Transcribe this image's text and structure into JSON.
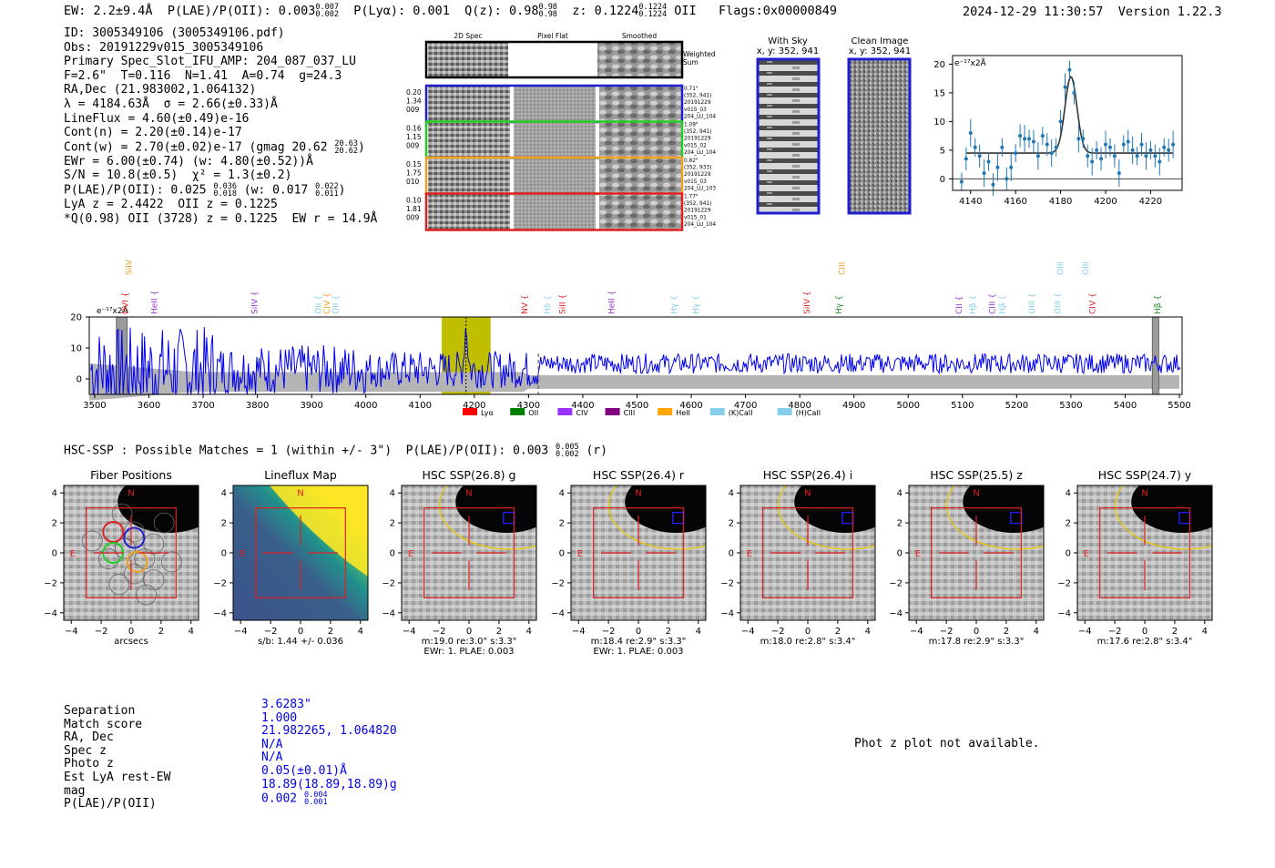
{
  "header": {
    "ew": "EW: 2.2±9.4Å",
    "plae_label": "P(LAE)/P(OII): 0.003",
    "plae_hi": "0.007",
    "plae_lo": "0.002",
    "plya": "P(Lyα): 0.001",
    "qz_label": "Q(z): 0.98",
    "qz_hi": "0.98",
    "qz_lo": "0.98",
    "z_label": "z: 0.1224",
    "z_hi": "0.1224",
    "z_lo": "0.1224",
    "z_line": "OII",
    "flags": "Flags:0x00000849",
    "timestamp": "2024-12-29 11:30:57",
    "version": "Version 1.22.3"
  },
  "info": {
    "id": "ID: 3005349106 (3005349106.pdf)",
    "obs": "Obs: 20191229v015_3005349106",
    "primary": "Primary Spec_Slot_IFU_AMP: 204_087_037_LU",
    "fwhm": "F=2.6\"  T=0.116  N=1.41  A=0.74  g=24.3",
    "radec": "RA,Dec (21.983002,1.064132)",
    "lambda": "λ = 4184.63Å  σ = 2.66(±0.33)Å",
    "lineflux": "LineFlux = 4.60(±0.49)e-16",
    "contn": "Cont(n) = 2.20(±0.14)e-17",
    "contw": "Cont(w) = 2.70(±0.02)e-17 (gmag 20.62",
    "contw_hi": "20.63",
    "contw_lo": "20.62",
    "ewr": "EWr = 6.00(±0.74) (w: 4.80(±0.52))Å",
    "sn": "S/N = 10.8(±0.5)  χ² = 1.3(±0.2)",
    "plae": "P(LAE)/P(OII): 0.025",
    "plae_hi": "0.036",
    "plae_lo": "0.018",
    "plae_w": "(w: 0.017",
    "plae_w_hi": "0.022",
    "plae_w_lo": "0.011",
    "lya": "LyA z = 2.4422  OII z = 0.1225",
    "q": "*Q(0.98) OII (3728) z = 0.1225  EW r = 14.9Å"
  },
  "cutouts": {
    "col_labels": [
      "2D Spec",
      "Pixel Flat",
      "Smoothed"
    ],
    "weighted_sum": "Weighted Sum",
    "rows": [
      {
        "stats": [
          "0.20",
          "1.34",
          "009"
        ],
        "meta": [
          "0.71\"",
          "(352, 941)",
          "20191229",
          "v015_03",
          "204_LU_104"
        ],
        "color": "#1f1fd0"
      },
      {
        "stats": [
          "0.16",
          "1.15",
          "009"
        ],
        "meta": [
          "1.09\"",
          "(352, 941)",
          "20191229",
          "v015_02",
          "204_LU_104"
        ],
        "color": "#22cc22"
      },
      {
        "stats": [
          "0.15",
          "1.75",
          "010"
        ],
        "meta": [
          "0.82\"",
          "(352, 933)",
          "20191229",
          "v015_03",
          "204_LU_103"
        ],
        "color": "#f0a020"
      },
      {
        "stats": [
          "0.10",
          "1.81",
          "009"
        ],
        "meta": [
          "1.77\"",
          "(352, 941)",
          "20191229",
          "v015_01",
          "204_LU_104"
        ],
        "color": "#e02020"
      }
    ],
    "with_sky": "With Sky",
    "with_sky_xy": "x, y: 352, 941",
    "clean_image": "Clean Image",
    "clean_xy": "x, y: 352, 941"
  },
  "fit_chart": {
    "unit": "e⁻¹⁷x2Å",
    "xticks": [
      4140,
      4160,
      4180,
      4200,
      4220
    ],
    "yticks": [
      0,
      5,
      10,
      15,
      20
    ],
    "xlim": [
      4132,
      4234
    ],
    "ylim": [
      -2,
      21.5
    ],
    "x": [
      4136,
      4138,
      4140,
      4142,
      4144,
      4146,
      4148,
      4150,
      4152,
      4154,
      4156,
      4158,
      4160,
      4162,
      4164,
      4166,
      4168,
      4170,
      4172,
      4174,
      4176,
      4178,
      4180,
      4182,
      4184,
      4186,
      4188,
      4190,
      4192,
      4194,
      4196,
      4198,
      4200,
      4202,
      4204,
      4206,
      4208,
      4210,
      4212,
      4214,
      4216,
      4218,
      4220,
      4222,
      4224,
      4226,
      4228,
      4230
    ],
    "y": [
      -0.5,
      3.5,
      8,
      5.5,
      4,
      1,
      3,
      -1,
      2,
      5.5,
      0,
      2,
      4.5,
      7.5,
      7,
      7,
      6.5,
      4,
      7.5,
      6,
      4.5,
      5.5,
      10,
      16,
      19,
      15,
      7,
      7,
      4,
      3,
      5,
      3.5,
      6,
      5.5,
      4,
      1,
      6,
      6.5,
      5,
      4,
      6,
      4,
      5,
      4,
      3,
      5.5,
      5,
      6
    ],
    "fit_baseline": 4.5,
    "fit_center": 4184.6,
    "fit_amp": 13.3,
    "fit_sigma": 2.66
  },
  "spectrum": {
    "unit": "e⁻¹⁷x2Å",
    "xticks": [
      3500,
      3600,
      3700,
      3800,
      3900,
      4000,
      4100,
      4200,
      4300,
      4400,
      4500,
      4600,
      4700,
      4800,
      4900,
      5000,
      5100,
      5200,
      5300,
      5400,
      5500
    ],
    "yticks": [
      0,
      10,
      20
    ],
    "xlim": [
      3490,
      5505
    ],
    "ylim": [
      -5,
      20
    ],
    "highlight": [
      4140,
      4230
    ],
    "detection": 4184.6,
    "dashed": 4318,
    "line_labels_top": [
      {
        "text": "SiIV",
        "x": 3563,
        "color": "#f0a020"
      },
      {
        "text": "CIII",
        "x": 4878,
        "color": "#f0a020"
      },
      {
        "text": "OIII",
        "x": 5280,
        "color": "#87ceeb"
      },
      {
        "text": "OIII",
        "x": 5327,
        "color": "#87ceeb"
      }
    ],
    "line_labels": [
      {
        "text": "OVI",
        "x": 3556,
        "color": "#e02020"
      },
      {
        "text": "HeII",
        "x": 3610,
        "color": "#9932cc"
      },
      {
        "text": "SiIV",
        "x": 3795,
        "color": "#9932cc"
      },
      {
        "text": "OII",
        "x": 3912,
        "color": "#87ceeb"
      },
      {
        "text": "CIV",
        "x": 3928,
        "color": "#f0a020"
      },
      {
        "text": "OII",
        "x": 3944,
        "color": "#87ceeb"
      },
      {
        "text": "NV",
        "x": 4293,
        "color": "#e02020"
      },
      {
        "text": "Hδ",
        "x": 4335,
        "color": "#87ceeb"
      },
      {
        "text": "SiII",
        "x": 4362,
        "color": "#e02020"
      },
      {
        "text": "HeII",
        "x": 4453,
        "color": "#9932cc"
      },
      {
        "text": "Hγ",
        "x": 4568,
        "color": "#87ceeb"
      },
      {
        "text": "Hγ",
        "x": 4608,
        "color": "#87ceeb"
      },
      {
        "text": "SiIV",
        "x": 4813,
        "color": "#e02020"
      },
      {
        "text": "Hγ",
        "x": 4872,
        "color": "#228b22"
      },
      {
        "text": "CII",
        "x": 5094,
        "color": "#9932cc"
      },
      {
        "text": "Hβ",
        "x": 5119,
        "color": "#87ceeb"
      },
      {
        "text": "CIII",
        "x": 5155,
        "color": "#9932cc"
      },
      {
        "text": "Hβ",
        "x": 5173,
        "color": "#87ceeb"
      },
      {
        "text": "OIII",
        "x": 5228,
        "color": "#87ceeb"
      },
      {
        "text": "OIII",
        "x": 5276,
        "color": "#87ceeb"
      },
      {
        "text": "CIV",
        "x": 5340,
        "color": "#e02020"
      },
      {
        "text": "Hβ",
        "x": 5460,
        "color": "#228b22"
      }
    ],
    "legend": [
      {
        "label": "Lyα",
        "color": "#ff0000"
      },
      {
        "label": "OII",
        "color": "#008000"
      },
      {
        "label": "CIV",
        "color": "#9932ff"
      },
      {
        "label": "CIII",
        "color": "#800080"
      },
      {
        "label": "HeII",
        "color": "#ffa500"
      },
      {
        "label": "(K)CaII",
        "color": "#87ceeb"
      },
      {
        "label": "(H)CaII",
        "color": "#87ceeb"
      }
    ]
  },
  "hsc": {
    "title": "HSC-SSP : Possible Matches = 1 (within +/- 3\")  P(LAE)/P(OII): 0.003",
    "title_hi": "0.005",
    "title_lo": "0.002",
    "title_band": "(r)",
    "ticks": [
      -4,
      -2,
      0,
      2,
      4
    ],
    "panels": [
      {
        "title": "Fiber Positions",
        "cap1": "arcsecs",
        "cap2": "",
        "kind": "fiber"
      },
      {
        "title": "Lineflux Map",
        "cap1": "s/b: 1.44 +/- 0.036",
        "cap2": "",
        "kind": "flux"
      },
      {
        "title": "HSC SSP(26.8) g",
        "cap1": "m:19.0  re:3.0\"  s:3.3\"",
        "cap2": "EWr: 1. PLAE: 0.003",
        "kind": "hsc"
      },
      {
        "title": "HSC SSP(26.4) r",
        "cap1": "m:18.4  re:2.9\"  s:3.3\"",
        "cap2": "EWr: 1. PLAE: 0.003",
        "kind": "hsc"
      },
      {
        "title": "HSC SSP(26.4) i",
        "cap1": "m:18.0  re:2.8\"  s:3.4\"",
        "cap2": "",
        "kind": "hsc"
      },
      {
        "title": "HSC SSP(25.5) z",
        "cap1": "m:17.8  re:2.9\"  s:3.3\"",
        "cap2": "",
        "kind": "hsc"
      },
      {
        "title": "HSC SSP(24.7) y",
        "cap1": "m:17.6  re:2.8\"  s:3.4\"",
        "cap2": "",
        "kind": "hsc"
      }
    ],
    "north": "N",
    "east": "E"
  },
  "match": {
    "labels": [
      "Separation",
      "Match score",
      "RA, Dec",
      "Spec z",
      "Photo z",
      "Est LyA rest-EW",
      "mag",
      "P(LAE)/P(OII)"
    ],
    "values": [
      "3.6283\"",
      "1.000",
      "21.982265, 1.064820",
      "N/A",
      "N/A",
      "0.05(±0.01)Å",
      "18.89(18.89,18.89)g",
      "0.002"
    ],
    "plae_hi": "0.004",
    "plae_lo": "0.001"
  },
  "photz_note": "Phot z plot not available.",
  "chart_data": [
    {
      "type": "scatter",
      "title": "",
      "ylabel": "e⁻¹⁷x2Å",
      "xlim": [
        4132,
        4234
      ],
      "ylim": [
        -2,
        21.5
      ],
      "x": [
        4136,
        4138,
        4140,
        4142,
        4144,
        4146,
        4148,
        4150,
        4152,
        4154,
        4156,
        4158,
        4160,
        4162,
        4164,
        4166,
        4168,
        4170,
        4172,
        4174,
        4176,
        4178,
        4180,
        4182,
        4184,
        4186,
        4188,
        4190,
        4192,
        4194,
        4196,
        4198,
        4200,
        4202,
        4204,
        4206,
        4208,
        4210,
        4212,
        4214,
        4216,
        4218,
        4220,
        4222,
        4224,
        4226,
        4228,
        4230
      ],
      "y": [
        -0.5,
        3.5,
        8,
        5.5,
        4,
        1,
        3,
        -1,
        2,
        5.5,
        0,
        2,
        4.5,
        7.5,
        7,
        7,
        6.5,
        4,
        7.5,
        6,
        4.5,
        5.5,
        10,
        16,
        19,
        15,
        7,
        7,
        4,
        3,
        5,
        3.5,
        6,
        5.5,
        4,
        1,
        6,
        6.5,
        5,
        4,
        6,
        4,
        5,
        4,
        3,
        5.5,
        5,
        6
      ]
    },
    {
      "type": "line",
      "title": "",
      "ylabel": "e⁻¹⁷x2Å",
      "xlim": [
        3490,
        5505
      ],
      "ylim": [
        -5,
        20
      ],
      "grid": false,
      "legend": [
        "Lyα",
        "OII",
        "CIV",
        "CIII",
        "HeII",
        "(K)CaII",
        "(H)CaII"
      ]
    }
  ]
}
